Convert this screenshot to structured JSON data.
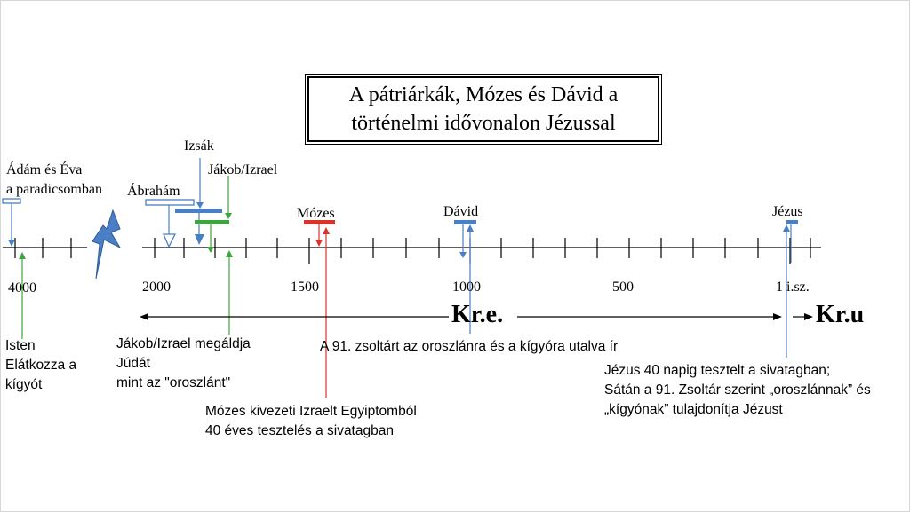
{
  "title": "A pátriárkák, Mózes és Dávid a\ntörténelmi idővonalon Jézussal",
  "periods": {
    "before": "Kr.e.",
    "after": "Kr.u"
  },
  "axis_ticks": {
    "t4000": "4000",
    "t2000": "2000",
    "t1500": "1500",
    "t1000": "1000",
    "t500": "500",
    "t1": "1 i.sz."
  },
  "markers": {
    "adam_eva": "Ádám és Éva\na paradicsomban",
    "abraham": "Ábrahám",
    "izsak": "Izsák",
    "jakob": "Jákob/Izrael",
    "mozes": "Mózes",
    "david": "Dávid",
    "jezus": "Jézus"
  },
  "annotations": {
    "isten": "Isten\nElátkozza a\nkígyót",
    "jakob_aldja": "Jákob/Izrael megáldja\nJúdát\nmint az \"oroszlánt\"",
    "mozes_kivezeti": "Mózes kivezeti Izraelt Egyiptomból\n40 éves tesztelés a sivatagban",
    "zsoltar_91": "A 91. zsoltárt az oroszlánra és a kígyóra utalva ír",
    "jezus_40": "Jézus 40 napig tesztelt a sivatagban;\nSátán a 91. Zsoltár szerint „oroszlánnak” és\n„kígyónak” tulajdonítja Jézust"
  },
  "colors": {
    "blue": "#4a7ec5",
    "green": "#3fa33f",
    "red": "#d9322b",
    "lightning": "#4a7ec5"
  }
}
